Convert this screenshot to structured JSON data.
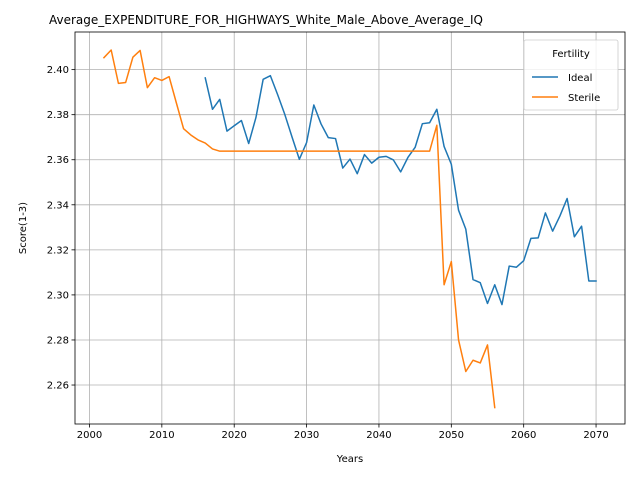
{
  "chart_data": {
    "type": "line",
    "title": "Average_EXPENDITURE_FOR_HIGHWAYS_White_Male_Above_Average_IQ",
    "xlabel": "Years",
    "ylabel": "Score(1-3)",
    "xlim": [
      1998,
      2074
    ],
    "ylim": [
      2.2427,
      2.4167
    ],
    "xticks": [
      2000,
      2010,
      2020,
      2030,
      2040,
      2050,
      2060,
      2070
    ],
    "yticks": [
      2.26,
      2.28,
      2.3,
      2.32,
      2.34,
      2.36,
      2.38,
      2.4
    ],
    "grid": true,
    "legend": {
      "title": "Fertility",
      "placement": "top-right"
    },
    "colors": {
      "Ideal": "#1f77b4",
      "Sterile": "#ff7f0e"
    },
    "series": [
      {
        "name": "Ideal",
        "x": [
          2016,
          2017,
          2018,
          2019,
          2020,
          2021,
          2022,
          2023,
          2024,
          2025,
          2026,
          2027,
          2028,
          2029,
          2030,
          2031,
          2032,
          2033,
          2034,
          2035,
          2036,
          2037,
          2038,
          2039,
          2040,
          2041,
          2042,
          2043,
          2044,
          2045,
          2046,
          2047,
          2048,
          2049,
          2050,
          2051,
          2052,
          2053,
          2054,
          2055,
          2056,
          2057,
          2058,
          2059,
          2060,
          2061,
          2062,
          2063,
          2064,
          2065,
          2066,
          2067,
          2068,
          2069,
          2070
        ],
        "y": [
          2.3963,
          2.3824,
          2.3868,
          2.3727,
          2.3751,
          2.3774,
          2.3672,
          2.3787,
          2.3957,
          2.3973,
          2.3889,
          2.38,
          2.37,
          2.3602,
          2.3676,
          2.3843,
          2.3759,
          2.3698,
          2.3694,
          2.3563,
          2.3603,
          2.3538,
          2.3623,
          2.3585,
          2.3611,
          2.3615,
          2.3599,
          2.3546,
          2.361,
          2.3655,
          2.376,
          2.3764,
          2.3824,
          2.3659,
          2.358,
          2.3376,
          2.3292,
          2.3068,
          2.3054,
          2.2962,
          2.3045,
          2.2957,
          2.3128,
          2.3123,
          2.3152,
          2.3251,
          2.3253,
          2.3364,
          2.3283,
          2.335,
          2.3428,
          2.3258,
          2.3305,
          2.3062,
          2.3062
        ]
      },
      {
        "name": "Sterile",
        "x": [
          2002,
          2003,
          2004,
          2005,
          2006,
          2007,
          2008,
          2009,
          2010,
          2011,
          2012,
          2013,
          2014,
          2015,
          2016,
          2017,
          2018,
          2019,
          2020,
          2021,
          2022,
          2023,
          2024,
          2025,
          2026,
          2027,
          2028,
          2029,
          2030,
          2031,
          2032,
          2033,
          2034,
          2035,
          2036,
          2037,
          2038,
          2039,
          2040,
          2041,
          2042,
          2043,
          2044,
          2045,
          2046,
          2047,
          2048,
          2049,
          2050,
          2051,
          2052,
          2053,
          2054,
          2055,
          2056
        ],
        "y": [
          2.4053,
          2.4087,
          2.3939,
          2.3943,
          2.4055,
          2.4085,
          2.392,
          2.3964,
          2.3952,
          2.3969,
          2.3853,
          2.3738,
          2.371,
          2.3688,
          2.3674,
          2.3648,
          2.3638,
          2.3638,
          2.3638,
          2.3638,
          2.3638,
          2.3638,
          2.3638,
          2.3638,
          2.3638,
          2.3638,
          2.3638,
          2.3638,
          2.3638,
          2.3638,
          2.3638,
          2.3638,
          2.3638,
          2.3638,
          2.3638,
          2.3638,
          2.3638,
          2.3638,
          2.3638,
          2.3638,
          2.3638,
          2.3638,
          2.3638,
          2.3638,
          2.3638,
          2.3638,
          2.3753,
          2.3045,
          2.3148,
          2.28,
          2.266,
          2.271,
          2.2698,
          2.2778,
          2.25
        ]
      }
    ]
  }
}
